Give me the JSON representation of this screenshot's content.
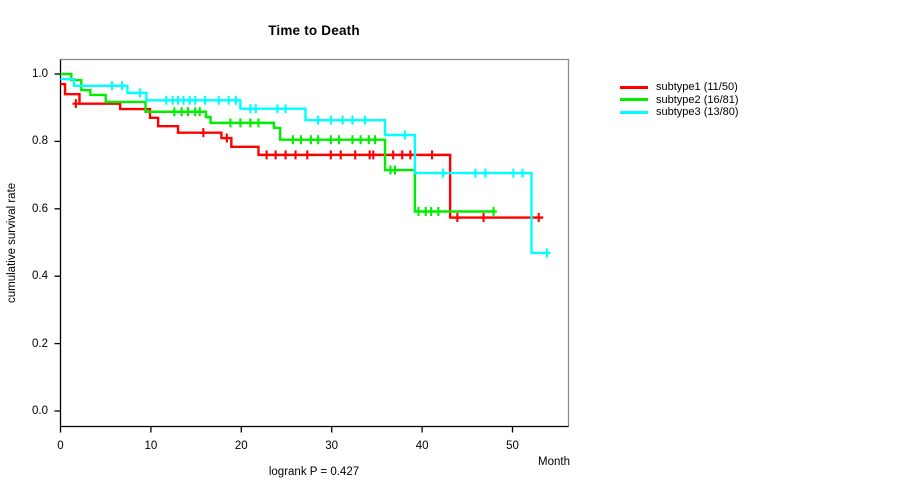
{
  "title": "Time to Death",
  "footer": "logrank P = 0.427",
  "axes": {
    "x_label": "Month",
    "y_label": "cumulative survival rate",
    "x_ticks": [
      0,
      10,
      20,
      30,
      40,
      50
    ],
    "y_ticks": [
      "1.0",
      "0.8",
      "0.6",
      "0.4",
      "0.2",
      "0.0"
    ]
  },
  "legend": [
    {
      "label": "subtype1 (11/50)",
      "color": "#ff0000"
    },
    {
      "label": "subtype2 (16/81)",
      "color": "#00ee00"
    },
    {
      "label": "subtype3 (13/80)",
      "color": "#00ffff"
    }
  ],
  "chart_data": {
    "type": "line",
    "subtype": "kaplan-meier-step",
    "title": "Time to Death",
    "xlabel": "Month",
    "ylabel": "cumulative survival rate",
    "xlim": [
      0,
      56.2
    ],
    "ylim": [
      0.0,
      1.0
    ],
    "grid": false,
    "legend_position": "right-outside",
    "annotation": "logrank P = 0.427",
    "series": [
      {
        "name": "subtype1 (11/50)",
        "events": 11,
        "n": 50,
        "color": "#ff0000",
        "steps": [
          [
            0,
            0.97
          ],
          [
            0.5,
            0.94
          ],
          [
            2.1,
            0.912
          ],
          [
            6.6,
            0.896
          ],
          [
            9.9,
            0.87
          ],
          [
            10.8,
            0.845
          ],
          [
            13,
            0.826
          ],
          [
            17.8,
            0.81
          ],
          [
            18.9,
            0.784
          ],
          [
            21.9,
            0.76
          ],
          [
            43.1,
            0.574
          ]
        ],
        "end_month": 53.4,
        "censors": [
          [
            1.7,
            0.912
          ],
          [
            15.8,
            0.826
          ],
          [
            18.4,
            0.81
          ],
          [
            22.8,
            0.76
          ],
          [
            23.8,
            0.76
          ],
          [
            24.9,
            0.76
          ],
          [
            26,
            0.76
          ],
          [
            27.3,
            0.76
          ],
          [
            29.9,
            0.76
          ],
          [
            31,
            0.76
          ],
          [
            32.6,
            0.76
          ],
          [
            34.2,
            0.76
          ],
          [
            34.6,
            0.76
          ],
          [
            36.8,
            0.76
          ],
          [
            37.8,
            0.76
          ],
          [
            38.7,
            0.76
          ],
          [
            41.1,
            0.76
          ],
          [
            43.9,
            0.574
          ],
          [
            46.8,
            0.574
          ],
          [
            52.9,
            0.574
          ]
        ]
      },
      {
        "name": "subtype2 (16/81)",
        "events": 16,
        "n": 81,
        "color": "#00ee00",
        "steps": [
          [
            0,
            1.0
          ],
          [
            1.2,
            0.982
          ],
          [
            2.3,
            0.952
          ],
          [
            3.3,
            0.938
          ],
          [
            5,
            0.917
          ],
          [
            9.4,
            0.888
          ],
          [
            16.1,
            0.872
          ],
          [
            16.6,
            0.855
          ],
          [
            23.6,
            0.84
          ],
          [
            24.3,
            0.805
          ],
          [
            35.9,
            0.715
          ],
          [
            39.2,
            0.592
          ]
        ],
        "end_month": 48.1,
        "censors": [
          [
            12.6,
            0.888
          ],
          [
            13.4,
            0.888
          ],
          [
            14.1,
            0.888
          ],
          [
            14.9,
            0.888
          ],
          [
            15.4,
            0.888
          ],
          [
            18.8,
            0.855
          ],
          [
            19.9,
            0.855
          ],
          [
            21,
            0.855
          ],
          [
            21.9,
            0.855
          ],
          [
            25.7,
            0.805
          ],
          [
            26.6,
            0.805
          ],
          [
            27.7,
            0.805
          ],
          [
            28.5,
            0.805
          ],
          [
            29.9,
            0.805
          ],
          [
            30.8,
            0.805
          ],
          [
            32.3,
            0.805
          ],
          [
            33.2,
            0.805
          ],
          [
            34.1,
            0.805
          ],
          [
            34.8,
            0.805
          ],
          [
            36.5,
            0.715
          ],
          [
            37,
            0.715
          ],
          [
            39.6,
            0.592
          ],
          [
            40.4,
            0.592
          ],
          [
            41,
            0.592
          ],
          [
            41.8,
            0.592
          ],
          [
            47.9,
            0.592
          ]
        ]
      },
      {
        "name": "subtype3 (13/80)",
        "events": 13,
        "n": 80,
        "color": "#00ffff",
        "steps": [
          [
            0,
            0.985
          ],
          [
            1.5,
            0.965
          ],
          [
            7.4,
            0.944
          ],
          [
            9.5,
            0.922
          ],
          [
            19.9,
            0.897
          ],
          [
            27.1,
            0.863
          ],
          [
            35.9,
            0.819
          ],
          [
            39.2,
            0.706
          ],
          [
            52.1,
            0.469
          ]
        ],
        "end_month": 54.2,
        "censors": [
          [
            5.7,
            0.965
          ],
          [
            6.8,
            0.965
          ],
          [
            8.8,
            0.944
          ],
          [
            11.7,
            0.922
          ],
          [
            12.4,
            0.922
          ],
          [
            13,
            0.922
          ],
          [
            13.6,
            0.922
          ],
          [
            14.3,
            0.922
          ],
          [
            14.9,
            0.922
          ],
          [
            16,
            0.922
          ],
          [
            17.5,
            0.922
          ],
          [
            18.6,
            0.922
          ],
          [
            19.4,
            0.922
          ],
          [
            21,
            0.897
          ],
          [
            21.6,
            0.897
          ],
          [
            24,
            0.897
          ],
          [
            24.9,
            0.897
          ],
          [
            28.5,
            0.863
          ],
          [
            29.9,
            0.863
          ],
          [
            31.2,
            0.863
          ],
          [
            32.3,
            0.863
          ],
          [
            33.7,
            0.863
          ],
          [
            38.1,
            0.819
          ],
          [
            42.3,
            0.706
          ],
          [
            45.9,
            0.706
          ],
          [
            47,
            0.706
          ],
          [
            50.1,
            0.706
          ],
          [
            51.1,
            0.706
          ],
          [
            53.8,
            0.469
          ]
        ]
      }
    ]
  }
}
